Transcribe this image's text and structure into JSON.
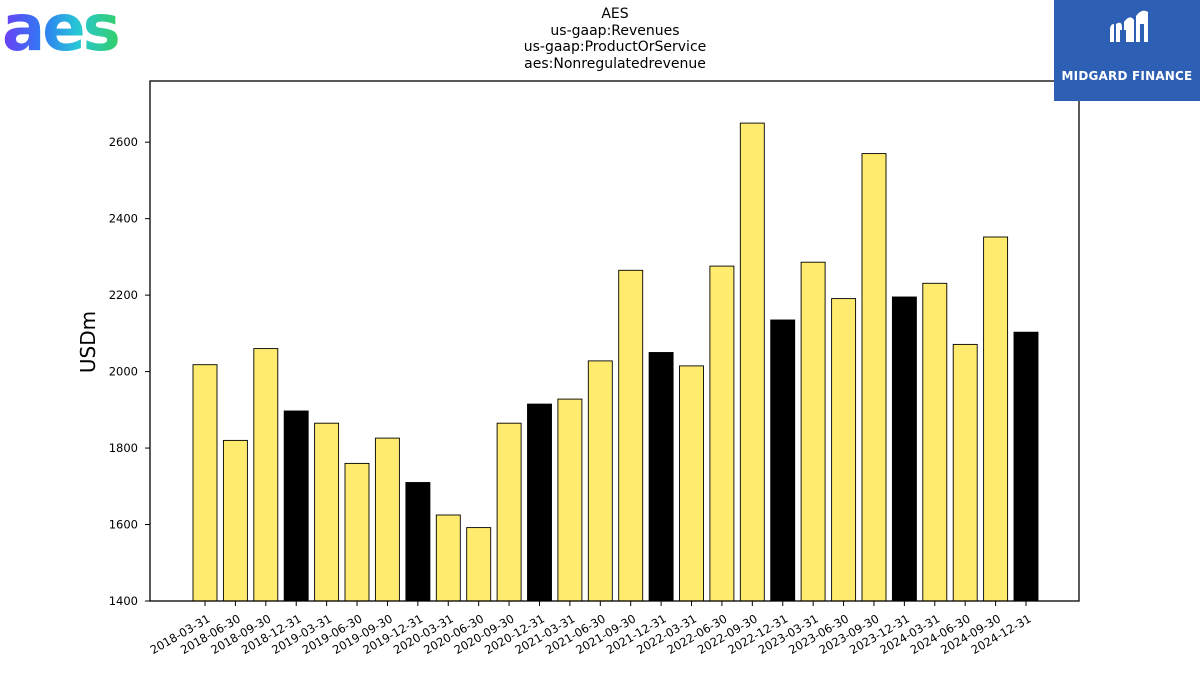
{
  "header": {
    "title_lines": [
      "AES",
      "us-gaap:Revenues",
      "us-gaap:ProductOrService",
      "aes:Nonregulatedrevenue"
    ]
  },
  "logos": {
    "left_text": "aes",
    "right_text": "MIDGARD FINANCE"
  },
  "colors": {
    "quarter_bar": "#ffec6e",
    "year_end_bar": "#000000",
    "right_logo_bg": "#2d5fb5"
  },
  "chart_data": {
    "type": "bar",
    "title": "AES us-gaap:Revenues us-gaap:ProductOrService aes:Nonregulatedrevenue",
    "xlabel": "",
    "ylabel": "USDm",
    "ylim": [
      1400,
      2760
    ],
    "yticks": [
      1400,
      1600,
      1800,
      2000,
      2200,
      2400,
      2600
    ],
    "grid": false,
    "categories": [
      "2018-03-31",
      "2018-06-30",
      "2018-09-30",
      "2018-12-31",
      "2019-03-31",
      "2019-06-30",
      "2019-09-30",
      "2019-12-31",
      "2020-03-31",
      "2020-06-30",
      "2020-09-30",
      "2020-12-31",
      "2021-03-31",
      "2021-06-30",
      "2021-09-30",
      "2021-12-31",
      "2022-03-31",
      "2022-06-30",
      "2022-09-30",
      "2022-12-31",
      "2023-03-31",
      "2023-06-30",
      "2023-09-30",
      "2023-12-31",
      "2024-03-31",
      "2024-06-30",
      "2024-09-30",
      "2024-12-31"
    ],
    "values": [
      2018,
      1820,
      2060,
      1897,
      1865,
      1760,
      1826,
      1710,
      1625,
      1592,
      1865,
      1915,
      1928,
      2028,
      2265,
      2050,
      2015,
      2276,
      2650,
      2135,
      2286,
      2191,
      2570,
      2195,
      2231,
      2071,
      2352,
      2103
    ],
    "year_end": [
      false,
      false,
      false,
      true,
      false,
      false,
      false,
      true,
      false,
      false,
      false,
      true,
      false,
      false,
      false,
      true,
      false,
      false,
      false,
      true,
      false,
      false,
      false,
      true,
      false,
      false,
      false,
      true
    ]
  }
}
